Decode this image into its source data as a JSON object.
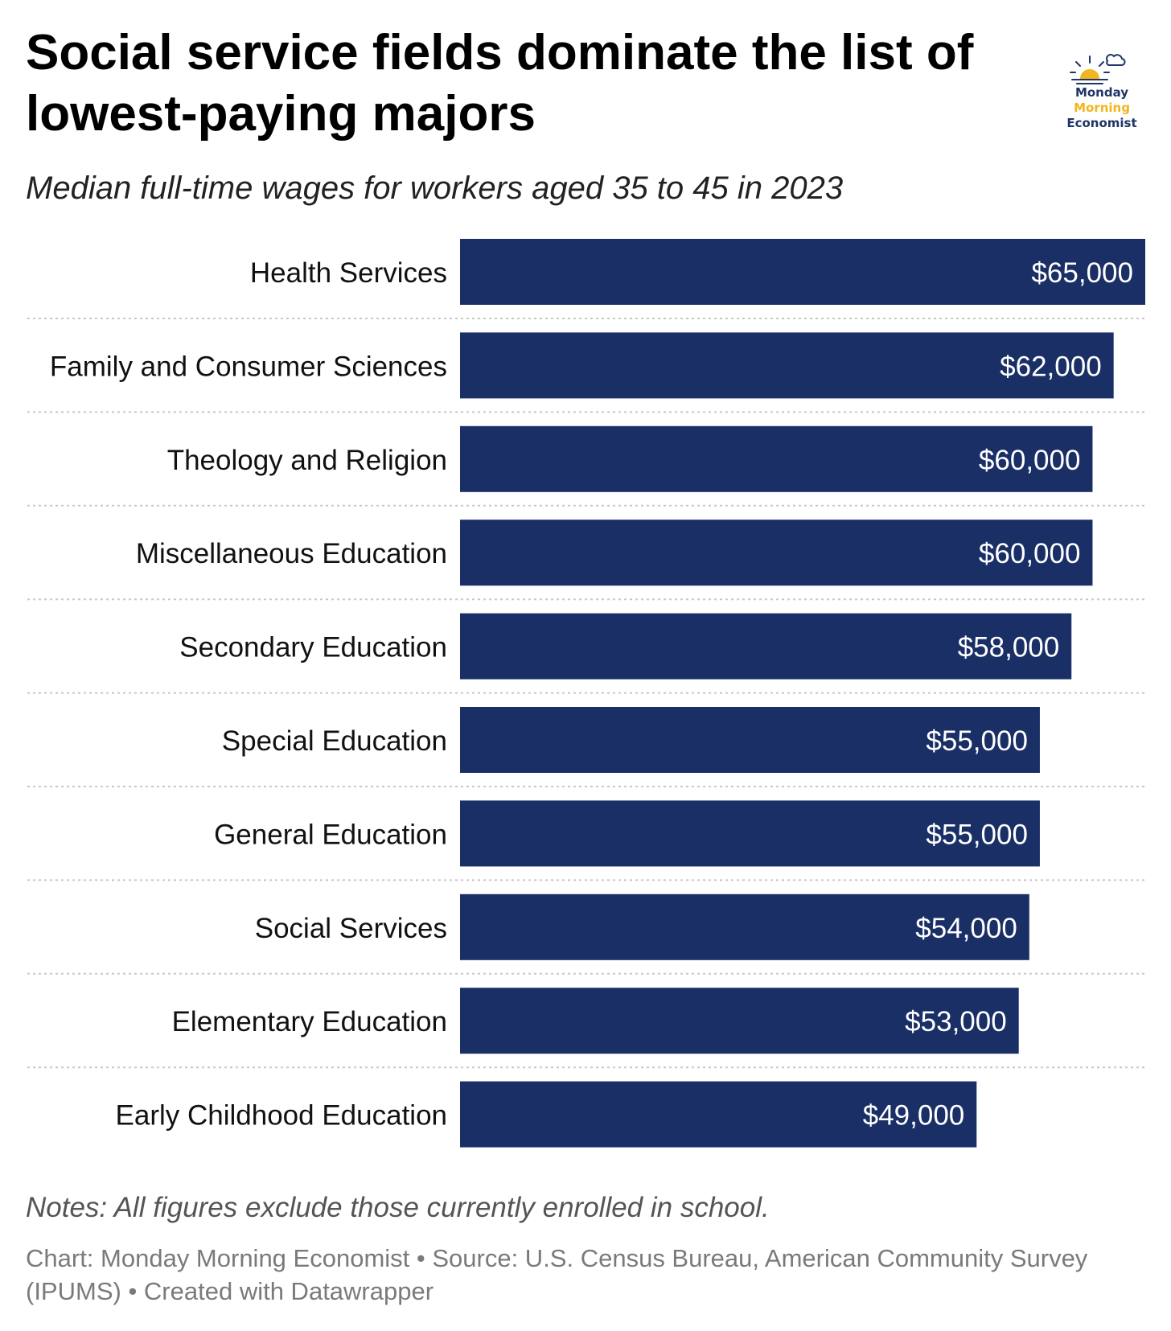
{
  "title": "Social service fields dominate the list of lowest-paying majors",
  "subtitle": "Median full-time wages for workers aged 35 to 45 in 2023",
  "logo": {
    "line1": "Monday",
    "line2": "Morning",
    "line3": "Economist",
    "icon": "sunrise-icon"
  },
  "colors": {
    "bar": "#192f66",
    "bar_label": "#ffffff",
    "logo_navy": "#1f3566",
    "logo_gold": "#f2b51e",
    "separator": "#c8c8c8"
  },
  "chart_data": {
    "type": "bar",
    "orientation": "horizontal",
    "title": "Social service fields dominate the list of lowest-paying majors",
    "subtitle": "Median full-time wages for workers aged 35 to 45 in 2023",
    "categories": [
      "Health Services",
      "Family and Consumer Sciences",
      "Theology and Religion",
      "Miscellaneous Education",
      "Secondary Education",
      "Special Education",
      "General Education",
      "Social Services",
      "Elementary Education",
      "Early Childhood Education"
    ],
    "values": [
      65000,
      62000,
      60000,
      60000,
      58000,
      55000,
      55000,
      54000,
      53000,
      49000
    ],
    "labels": [
      "$65,000",
      "$62,000",
      "$60,000",
      "$60,000",
      "$58,000",
      "$55,000",
      "$55,000",
      "$54,000",
      "$53,000",
      "$49,000"
    ],
    "xlim": [
      0,
      65000
    ],
    "grid": false
  },
  "notes": "Notes: All figures exclude those currently enrolled in school.",
  "credits": {
    "chart": "Chart: Monday Morning Economist",
    "source": "Source: U.S. Census Bureau, American Community Survey (IPUMS)",
    "tool": "Created with Datawrapper"
  }
}
